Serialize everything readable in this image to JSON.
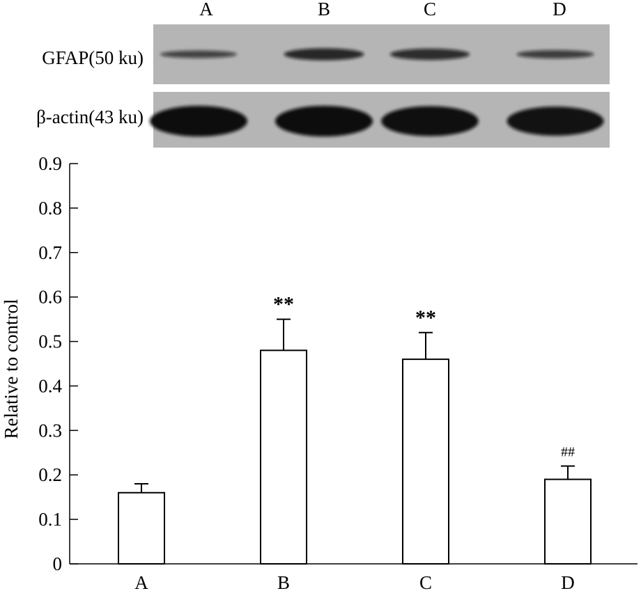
{
  "blot": {
    "lanes": [
      "A",
      "B",
      "C",
      "D"
    ],
    "rows": [
      {
        "label": "GFAP(50 ku)",
        "intensity": [
          0.45,
          0.72,
          0.68,
          0.5
        ]
      },
      {
        "label": "β-actin(43 ku)",
        "intensity": [
          1.0,
          1.0,
          0.98,
          0.95
        ]
      }
    ],
    "colors": {
      "background": "#b5b5b5",
      "band": "#0d0d0d"
    }
  },
  "chart_data": {
    "type": "bar",
    "categories": [
      "A",
      "B",
      "C",
      "D"
    ],
    "values": [
      0.16,
      0.48,
      0.46,
      0.19
    ],
    "errors": [
      0.02,
      0.07,
      0.06,
      0.03
    ],
    "annotations": [
      "",
      "**",
      "**",
      "##"
    ],
    "xlabel": "",
    "ylabel": "Relative to control",
    "ylim": [
      0,
      0.9
    ],
    "yticks": [
      "0",
      "0.1",
      "0.2",
      "0.3",
      "0.4",
      "0.5",
      "0.6",
      "0.7",
      "0.8",
      "0.9"
    ],
    "grid": false,
    "bar_fill": "#ffffff",
    "bar_stroke": "#000000"
  }
}
